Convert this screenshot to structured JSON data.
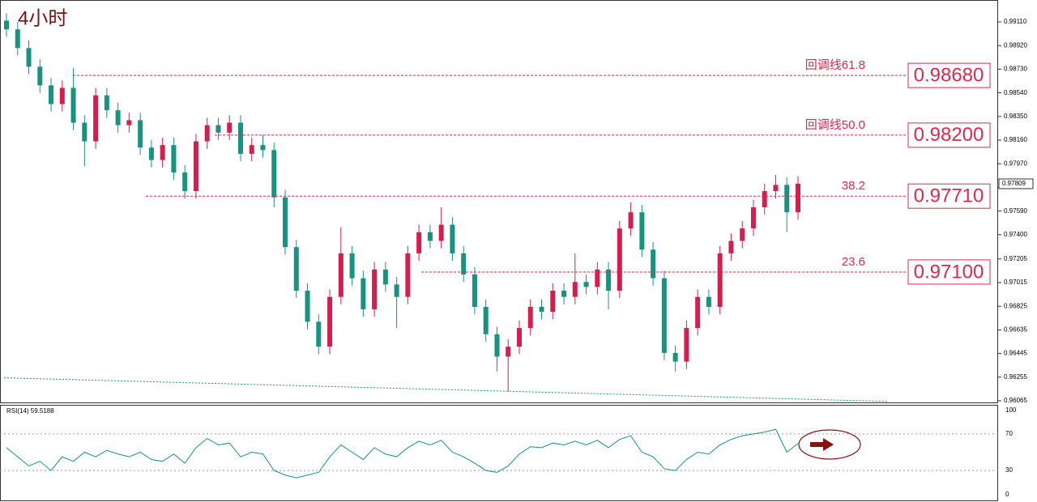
{
  "chart_data": [
    {
      "type": "candlestick",
      "title": "4小时",
      "up_color": "#d41f4e",
      "down_color": "#17937f",
      "open": [
        0.9912,
        0.9905,
        0.989,
        0.9875,
        0.986,
        0.9845,
        0.9858,
        0.983,
        0.9815,
        0.9852,
        0.984,
        0.9828,
        0.9832,
        0.981,
        0.98,
        0.9812,
        0.979,
        0.9775,
        0.9815,
        0.9828,
        0.9822,
        0.983,
        0.9805,
        0.9812,
        0.9808,
        0.977,
        0.973,
        0.9695,
        0.967,
        0.965,
        0.969,
        0.9725,
        0.9705,
        0.968,
        0.9712,
        0.97,
        0.969,
        0.9725,
        0.9742,
        0.9735,
        0.9748,
        0.9725,
        0.9708,
        0.9682,
        0.966,
        0.9642,
        0.965,
        0.9665,
        0.9682,
        0.9678,
        0.9695,
        0.969,
        0.9702,
        0.9698,
        0.9712,
        0.9695,
        0.9745,
        0.9758,
        0.9728,
        0.9705,
        0.9645,
        0.9638,
        0.9665,
        0.969,
        0.9682,
        0.9725,
        0.9735,
        0.9745,
        0.9762,
        0.9775,
        0.978,
        0.9758
      ],
      "high": [
        0.9918,
        0.9911,
        0.9896,
        0.9881,
        0.9866,
        0.9864,
        0.9874,
        0.9836,
        0.9858,
        0.9858,
        0.9846,
        0.9838,
        0.9838,
        0.9816,
        0.9818,
        0.9818,
        0.9796,
        0.9821,
        0.9834,
        0.9834,
        0.9836,
        0.9836,
        0.9818,
        0.982,
        0.9814,
        0.9776,
        0.9736,
        0.9701,
        0.9676,
        0.9696,
        0.9746,
        0.9731,
        0.9711,
        0.9718,
        0.9718,
        0.9706,
        0.9731,
        0.9748,
        0.9748,
        0.9762,
        0.9754,
        0.9731,
        0.9714,
        0.9688,
        0.9666,
        0.9656,
        0.9671,
        0.9688,
        0.9688,
        0.9701,
        0.9701,
        0.9725,
        0.9708,
        0.9718,
        0.9718,
        0.9751,
        0.9766,
        0.9764,
        0.9734,
        0.9711,
        0.9651,
        0.9671,
        0.9696,
        0.9696,
        0.9731,
        0.9741,
        0.9751,
        0.9768,
        0.9781,
        0.9788,
        0.9786,
        0.9787
      ],
      "low": [
        0.9899,
        0.9884,
        0.9869,
        0.9854,
        0.9839,
        0.9839,
        0.9824,
        0.9795,
        0.9809,
        0.9834,
        0.9822,
        0.9822,
        0.9804,
        0.9794,
        0.9794,
        0.9784,
        0.9769,
        0.9769,
        0.9809,
        0.9816,
        0.9816,
        0.9799,
        0.9799,
        0.9802,
        0.9762,
        0.9724,
        0.9689,
        0.9664,
        0.9644,
        0.9644,
        0.9684,
        0.9699,
        0.9674,
        0.9674,
        0.9694,
        0.9665,
        0.9684,
        0.9719,
        0.9729,
        0.9729,
        0.9719,
        0.9702,
        0.9676,
        0.9654,
        0.963,
        0.9614,
        0.9644,
        0.9659,
        0.9672,
        0.9672,
        0.9684,
        0.9684,
        0.9692,
        0.9692,
        0.968,
        0.9689,
        0.9739,
        0.9722,
        0.9699,
        0.9639,
        0.963,
        0.9632,
        0.9659,
        0.9676,
        0.9676,
        0.9719,
        0.9729,
        0.9739,
        0.9756,
        0.9769,
        0.9742,
        0.9752
      ],
      "close": [
        0.9905,
        0.989,
        0.9875,
        0.986,
        0.9845,
        0.9858,
        0.983,
        0.9815,
        0.9852,
        0.984,
        0.9828,
        0.9832,
        0.981,
        0.98,
        0.9812,
        0.979,
        0.9775,
        0.9815,
        0.9828,
        0.9822,
        0.983,
        0.9805,
        0.9812,
        0.9808,
        0.977,
        0.973,
        0.9695,
        0.967,
        0.965,
        0.969,
        0.9725,
        0.9705,
        0.968,
        0.9712,
        0.97,
        0.969,
        0.9725,
        0.9742,
        0.9735,
        0.9748,
        0.9725,
        0.9708,
        0.9682,
        0.966,
        0.9642,
        0.965,
        0.9665,
        0.9682,
        0.9678,
        0.9695,
        0.969,
        0.9702,
        0.9698,
        0.9712,
        0.9695,
        0.9745,
        0.9758,
        0.9728,
        0.9705,
        0.9645,
        0.9638,
        0.9665,
        0.969,
        0.9682,
        0.9725,
        0.9735,
        0.9745,
        0.9762,
        0.9775,
        0.978,
        0.9758,
        0.9781
      ],
      "ylim": [
        0.96052,
        0.99286
      ],
      "yticks": [
        {
          "value": 0.9911,
          "label": "0.99110"
        },
        {
          "value": 0.9892,
          "label": "0.98920"
        },
        {
          "value": 0.9873,
          "label": "0.98730"
        },
        {
          "value": 0.9854,
          "label": "0.98540"
        },
        {
          "value": 0.9835,
          "label": "0.98350"
        },
        {
          "value": 0.9816,
          "label": "0.98160"
        },
        {
          "value": 0.9797,
          "label": "0.97970"
        },
        {
          "value": 0.9778,
          "label": "0.97780"
        },
        {
          "value": 0.9759,
          "label": "0.97590"
        },
        {
          "value": 0.974,
          "label": "0.97400"
        },
        {
          "value": 0.97205,
          "label": "0.97205"
        },
        {
          "value": 0.97015,
          "label": "0.97015"
        },
        {
          "value": 0.96825,
          "label": "0.96825"
        },
        {
          "value": 0.96635,
          "label": "0.96635"
        },
        {
          "value": 0.96445,
          "label": "0.96445"
        },
        {
          "value": 0.96255,
          "label": "0.96255"
        },
        {
          "value": 0.96065,
          "label": "0.96065"
        }
      ],
      "levels": [
        {
          "label": "回调线61.8",
          "price": {
            "value": 0.9868,
            "label": "0.98680"
          }
        },
        {
          "label": "回调线50.0",
          "price": {
            "value": 0.982,
            "label": "0.98200"
          }
        },
        {
          "label": "38.2",
          "price": {
            "value": 0.9771,
            "label": "0.97710"
          }
        },
        {
          "label": "23.6",
          "price": {
            "value": 0.971,
            "label": "0.97100"
          }
        }
      ],
      "level_color": "#e0284a",
      "current_price": {
        "value": 0.97809,
        "label": "0.97809"
      },
      "trend_line": {
        "color": "#17937f",
        "values": [
          0.9625,
          0.9606
        ]
      }
    },
    {
      "type": "line",
      "title": "RSI(14) 59.5188",
      "color": "#17937f",
      "values": [
        55,
        45,
        35,
        40,
        30,
        45,
        40,
        50,
        45,
        52,
        48,
        45,
        50,
        42,
        40,
        48,
        38,
        55,
        65,
        58,
        60,
        45,
        50,
        48,
        30,
        25,
        22,
        25,
        28,
        45,
        58,
        50,
        42,
        55,
        48,
        45,
        55,
        62,
        58,
        63,
        50,
        45,
        38,
        30,
        28,
        35,
        48,
        56,
        55,
        60,
        58,
        62,
        58,
        63,
        55,
        64,
        68,
        50,
        45,
        32,
        30,
        42,
        50,
        48,
        58,
        64,
        68,
        70,
        72,
        75,
        50,
        59.5188
      ],
      "ylim": [
        0,
        100
      ],
      "yticks": [
        0,
        30,
        70,
        100
      ]
    }
  ]
}
